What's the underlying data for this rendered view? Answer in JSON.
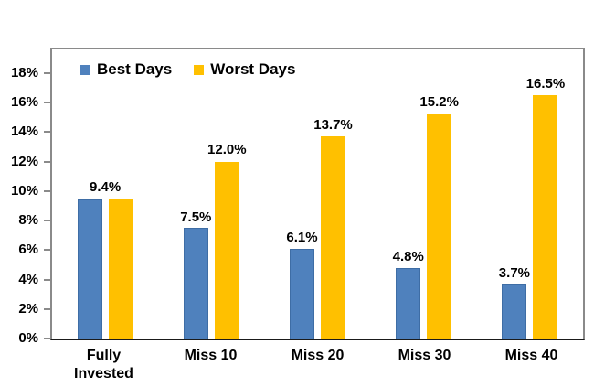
{
  "chart": {
    "background": "#ffffff",
    "colors": {
      "best_fill": "#4F81BD",
      "best_border": "#3E6DA5",
      "worst_fill": "#FFC000",
      "plot_border": "#8A8A8A",
      "axis_line": "#1A1A1A",
      "tick_mark": "#8A8A8A",
      "text": "#000000"
    }
  },
  "legend": {
    "items": [
      {
        "label": "Best Days",
        "color": "#4F81BD"
      },
      {
        "label": "Worst Days",
        "color": "#FFC000"
      }
    ]
  },
  "y_axis": {
    "ticks": [
      {
        "label": "0%",
        "value": 0
      },
      {
        "label": "2%",
        "value": 2
      },
      {
        "label": "4%",
        "value": 4
      },
      {
        "label": "6%",
        "value": 6
      },
      {
        "label": "8%",
        "value": 8
      },
      {
        "label": "10%",
        "value": 10
      },
      {
        "label": "12%",
        "value": 12
      },
      {
        "label": "14%",
        "value": 14
      },
      {
        "label": "16%",
        "value": 16
      },
      {
        "label": "18%",
        "value": 18
      }
    ]
  },
  "chart_data": {
    "type": "bar",
    "title": "",
    "xlabel": "",
    "ylabel": "",
    "categories": [
      "Fully\nInvested",
      "Miss 10",
      "Miss 20",
      "Miss 30",
      "Miss 40"
    ],
    "series": [
      {
        "name": "Best Days",
        "color": "#4F81BD",
        "values": [
          9.4,
          7.5,
          6.1,
          4.8,
          3.7
        ],
        "labels": [
          "9.4%",
          "7.5%",
          "6.1%",
          "4.8%",
          "3.7%"
        ]
      },
      {
        "name": "Worst Days",
        "color": "#FFC000",
        "values": [
          9.4,
          12.0,
          13.7,
          15.2,
          16.5
        ],
        "labels": [
          "9.4%",
          "12.0%",
          "13.7%",
          "15.2%",
          "16.5%"
        ]
      }
    ],
    "label_mode": [
      "combined",
      "per-bar",
      "per-bar",
      "per-bar",
      "per-bar"
    ],
    "ylim": [
      0,
      19.6
    ],
    "grid": false,
    "legend_position": "top-inside"
  }
}
